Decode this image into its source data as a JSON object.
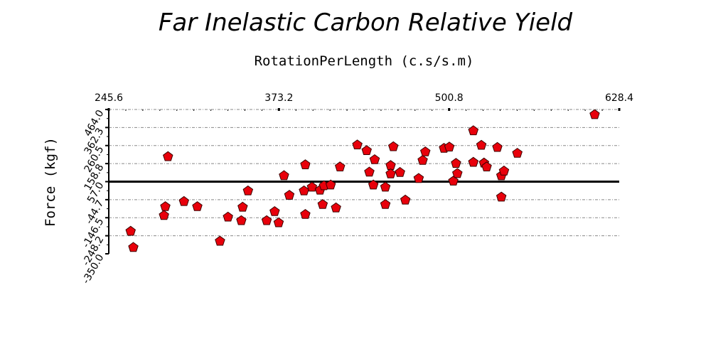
{
  "chart_data": {
    "type": "scatter",
    "title": "Far Inelastic Carbon Relative Yield",
    "xlabel": "RotationPerLength (c.s/s.m)",
    "ylabel": "Force (kgf)",
    "xlim": [
      245.6,
      628.4
    ],
    "ylim": [
      -350.0,
      464.0
    ],
    "x_ticks": [
      "245.6",
      "373.2",
      "500.8",
      "628.4"
    ],
    "y_ticks": [
      "-350.0",
      "-248.2",
      "-146.5",
      "-44.7",
      "57.0",
      "158.8",
      "260.5",
      "362.3",
      "464.0"
    ],
    "x_axis_position": "top",
    "zero_line_y": 57.0,
    "grid": true,
    "marker": "pentagon",
    "marker_color": "#e8000b",
    "points": [
      {
        "x": 262,
        "y": -223
      },
      {
        "x": 264,
        "y": -314
      },
      {
        "x": 290,
        "y": 198
      },
      {
        "x": 288,
        "y": -84
      },
      {
        "x": 287,
        "y": -134
      },
      {
        "x": 302,
        "y": -55
      },
      {
        "x": 312,
        "y": -84
      },
      {
        "x": 329,
        "y": -279
      },
      {
        "x": 335,
        "y": -143
      },
      {
        "x": 345,
        "y": -163
      },
      {
        "x": 346,
        "y": -87
      },
      {
        "x": 350,
        "y": 5
      },
      {
        "x": 364,
        "y": -163
      },
      {
        "x": 370,
        "y": -112
      },
      {
        "x": 373,
        "y": -175
      },
      {
        "x": 377,
        "y": 91
      },
      {
        "x": 381,
        "y": -20
      },
      {
        "x": 392,
        "y": 5
      },
      {
        "x": 393,
        "y": 152
      },
      {
        "x": 393,
        "y": -128
      },
      {
        "x": 398,
        "y": 26
      },
      {
        "x": 404,
        "y": 9
      },
      {
        "x": 406,
        "y": -72
      },
      {
        "x": 407,
        "y": 34
      },
      {
        "x": 412,
        "y": 38
      },
      {
        "x": 416,
        "y": -91
      },
      {
        "x": 419,
        "y": 140
      },
      {
        "x": 432,
        "y": 264
      },
      {
        "x": 439,
        "y": 232
      },
      {
        "x": 441,
        "y": 111
      },
      {
        "x": 444,
        "y": 38
      },
      {
        "x": 445,
        "y": 181
      },
      {
        "x": 453,
        "y": 26
      },
      {
        "x": 453,
        "y": -72
      },
      {
        "x": 457,
        "y": 148
      },
      {
        "x": 457,
        "y": 101
      },
      {
        "x": 459,
        "y": 254
      },
      {
        "x": 464,
        "y": 109
      },
      {
        "x": 468,
        "y": -47
      },
      {
        "x": 478,
        "y": 75
      },
      {
        "x": 481,
        "y": 177
      },
      {
        "x": 483,
        "y": 225
      },
      {
        "x": 497,
        "y": 245
      },
      {
        "x": 501,
        "y": 252
      },
      {
        "x": 504,
        "y": 60
      },
      {
        "x": 506,
        "y": 160
      },
      {
        "x": 507,
        "y": 103
      },
      {
        "x": 519,
        "y": 344
      },
      {
        "x": 519,
        "y": 166
      },
      {
        "x": 525,
        "y": 262
      },
      {
        "x": 527,
        "y": 162
      },
      {
        "x": 529,
        "y": 140
      },
      {
        "x": 537,
        "y": 250
      },
      {
        "x": 540,
        "y": -30
      },
      {
        "x": 540,
        "y": 90
      },
      {
        "x": 542,
        "y": 117
      },
      {
        "x": 552,
        "y": 217
      },
      {
        "x": 610,
        "y": 435
      }
    ]
  }
}
